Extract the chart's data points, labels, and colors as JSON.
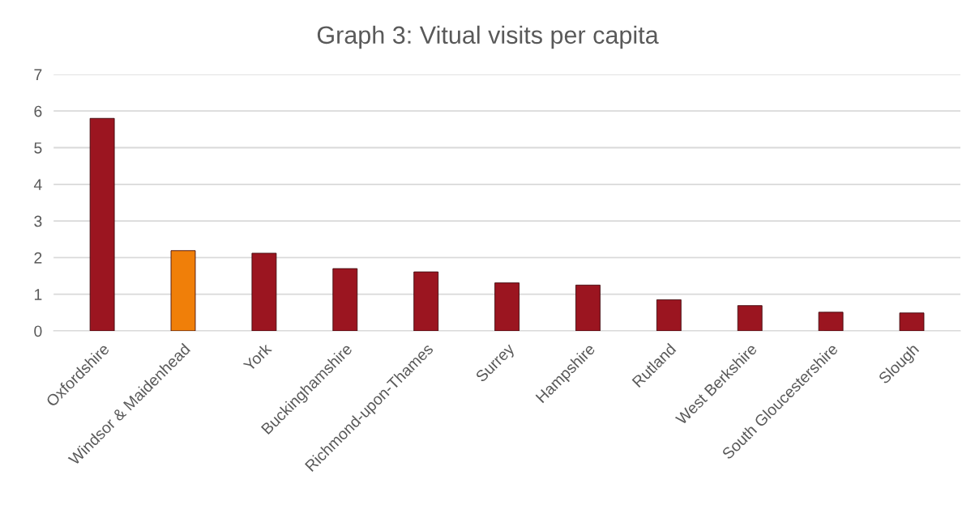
{
  "chart_data": {
    "type": "bar",
    "title": "Graph 3: Vitual visits per capita",
    "categories": [
      "Oxfordshire",
      "Windsor & Maidenhead",
      "York",
      "Buckinghamshire",
      "Richmond-upon-Thames",
      "Surrey",
      "Hampshire",
      "Rutland",
      "West Berkshire",
      "South Gloucestershire",
      "Slough"
    ],
    "values": [
      5.8,
      2.19,
      2.12,
      1.7,
      1.61,
      1.31,
      1.25,
      0.85,
      0.69,
      0.51,
      0.49
    ],
    "colors": [
      "#9b1520",
      "#f07f09",
      "#9b1520",
      "#9b1520",
      "#9b1520",
      "#9b1520",
      "#9b1520",
      "#9b1520",
      "#9b1520",
      "#9b1520",
      "#9b1520"
    ],
    "ylim": [
      0,
      7
    ],
    "yticks": [
      0,
      1,
      2,
      3,
      4,
      5,
      6,
      7
    ],
    "grid": "y"
  }
}
